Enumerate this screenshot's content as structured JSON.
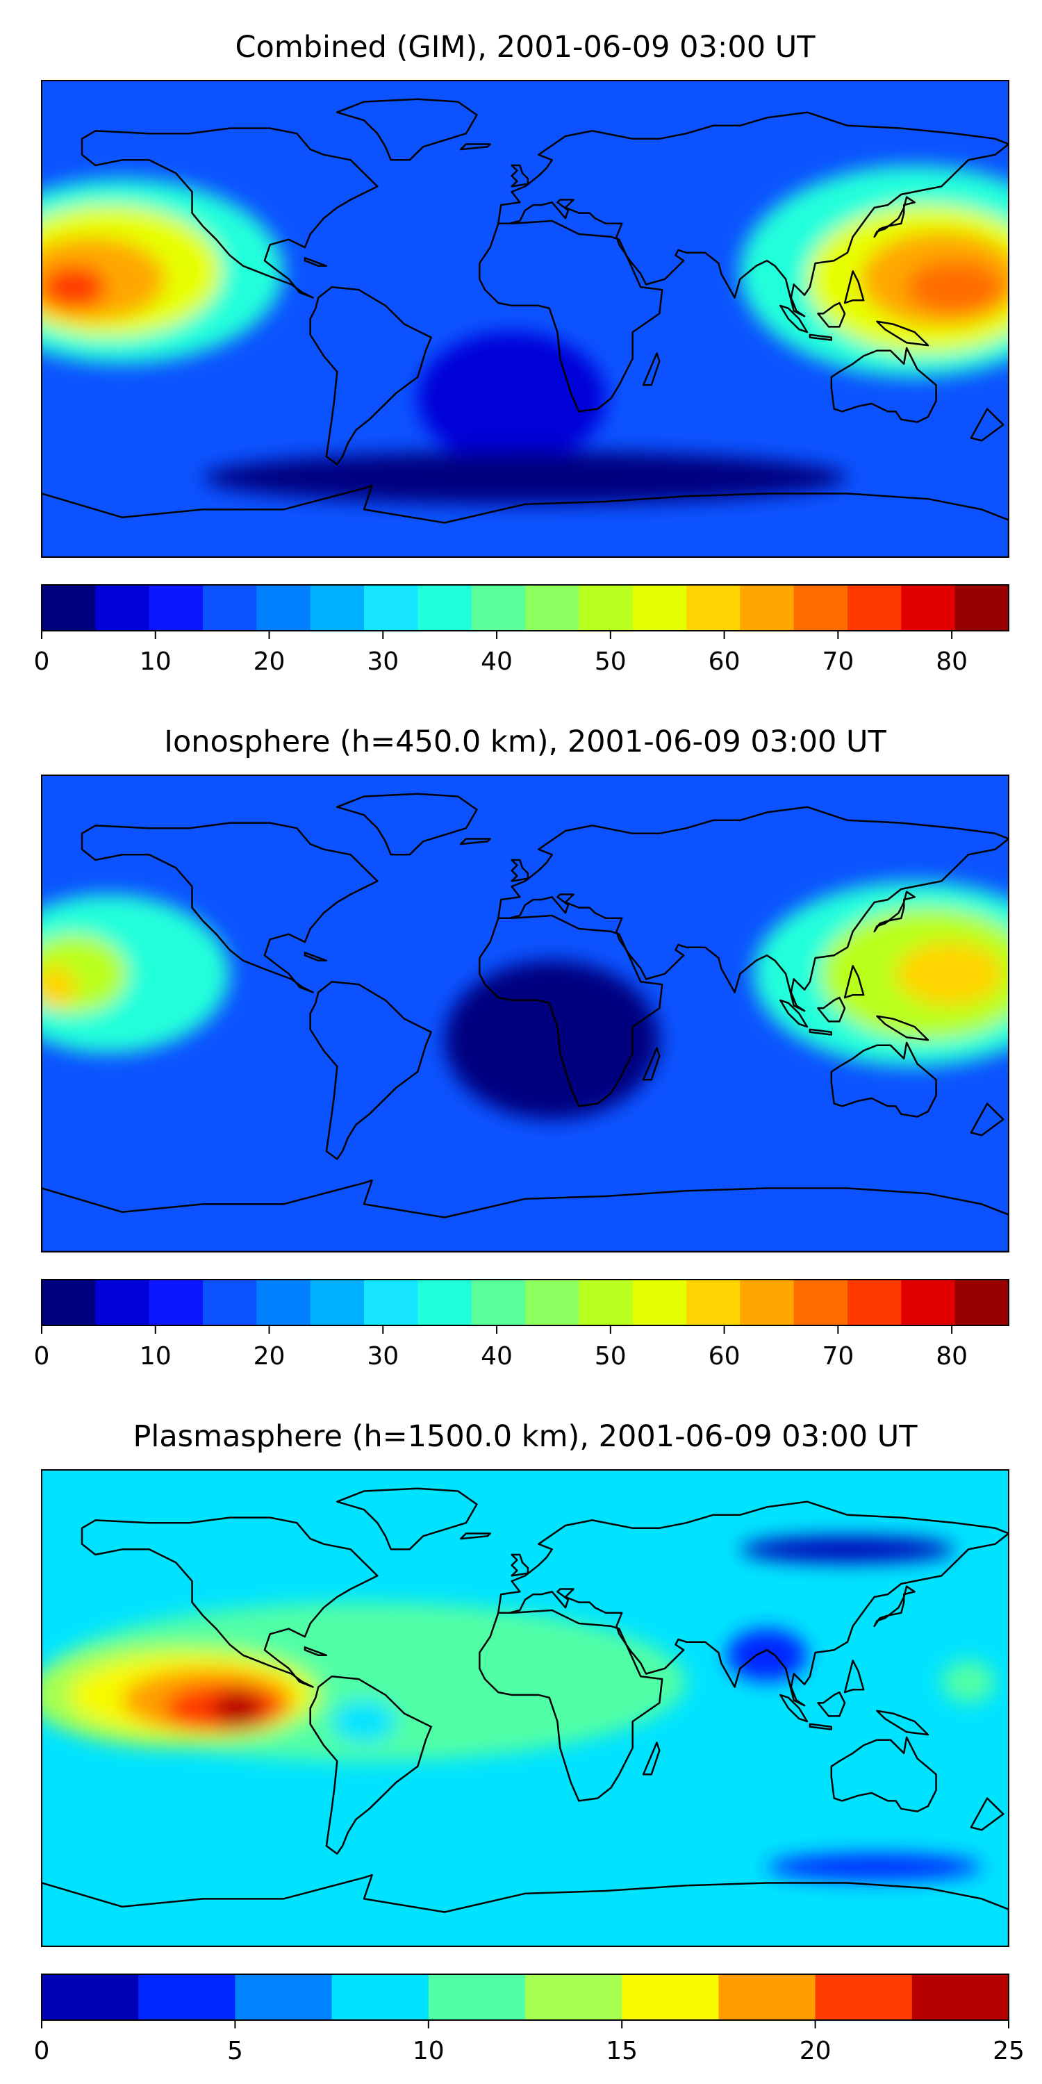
{
  "panels": [
    {
      "title": "Combined (GIM), 2001-06-09 03:00 UT",
      "colorbar": {
        "ticks": [
          "0",
          "10",
          "20",
          "30",
          "40",
          "50",
          "60",
          "70",
          "80"
        ],
        "min": 0,
        "max": 85,
        "step": 5,
        "colors": [
          "#00007f",
          "#0000d8",
          "#0d17ff",
          "#0c53ff",
          "#0080ff",
          "#00b0ff",
          "#16e5ff",
          "#20ffdb",
          "#5aff9c",
          "#8dff5e",
          "#b9ff1f",
          "#e6ff00",
          "#ffd400",
          "#ffa700",
          "#ff6d00",
          "#ff3a00",
          "#e00000",
          "#990000"
        ]
      },
      "features": [
        {
          "value": 38,
          "lon": -150,
          "lat": 18,
          "rx": 60,
          "ry": 35
        },
        {
          "value": 55,
          "lon": -155,
          "lat": 18,
          "rx": 42,
          "ry": 25
        },
        {
          "value": 68,
          "lon": -162,
          "lat": 15,
          "rx": 28,
          "ry": 16
        },
        {
          "value": 78,
          "lon": -168,
          "lat": 12,
          "rx": 12,
          "ry": 8
        },
        {
          "value": 38,
          "lon": 145,
          "lat": 18,
          "rx": 65,
          "ry": 40
        },
        {
          "value": 55,
          "lon": 150,
          "lat": 15,
          "rx": 45,
          "ry": 28
        },
        {
          "value": 68,
          "lon": 155,
          "lat": 15,
          "rx": 30,
          "ry": 18
        },
        {
          "value": 73,
          "lon": 160,
          "lat": 12,
          "rx": 18,
          "ry": 10
        },
        {
          "value": 8,
          "lon": -5,
          "lat": -30,
          "rx": 35,
          "ry": 25
        },
        {
          "value": 3,
          "lon": 0,
          "lat": -60,
          "rx": 120,
          "ry": 10
        }
      ]
    },
    {
      "title": "Ionosphere  (h=450.0 km), 2001-06-09 03:00 UT",
      "colorbar": {
        "ticks": [
          "0",
          "10",
          "20",
          "30",
          "40",
          "50",
          "60",
          "70",
          "80"
        ],
        "min": 0,
        "max": 85,
        "step": 5,
        "colors": [
          "#00007f",
          "#0000d8",
          "#0d17ff",
          "#0c53ff",
          "#0080ff",
          "#00b0ff",
          "#16e5ff",
          "#20ffdb",
          "#5aff9c",
          "#8dff5e",
          "#b9ff1f",
          "#e6ff00",
          "#ffd400",
          "#ffa700",
          "#ff6d00",
          "#ff3a00",
          "#e00000",
          "#990000"
        ]
      },
      "features": [
        {
          "value": 35,
          "lon": -155,
          "lat": 15,
          "rx": 45,
          "ry": 30
        },
        {
          "value": 50,
          "lon": -168,
          "lat": 15,
          "rx": 20,
          "ry": 15
        },
        {
          "value": 60,
          "lon": -175,
          "lat": 10,
          "rx": 8,
          "ry": 8
        },
        {
          "value": 35,
          "lon": 145,
          "lat": 15,
          "rx": 60,
          "ry": 35
        },
        {
          "value": 50,
          "lon": 150,
          "lat": 15,
          "rx": 40,
          "ry": 25
        },
        {
          "value": 60,
          "lon": 158,
          "lat": 15,
          "rx": 20,
          "ry": 12
        },
        {
          "value": 4,
          "lon": 10,
          "lat": -10,
          "rx": 40,
          "ry": 30
        }
      ]
    },
    {
      "title": "Plasmasphere (h=1500.0 km), 2001-06-09 03:00 UT",
      "colorbar": {
        "ticks": [
          "0",
          "5",
          "10",
          "15",
          "20",
          "25"
        ],
        "min": 0,
        "max": 25,
        "step": 2.5,
        "colors": [
          "#0000b7",
          "#0026ff",
          "#0083ff",
          "#00e3ff",
          "#51ffa6",
          "#a5ff51",
          "#f7fa00",
          "#ff9d00",
          "#ff3b00",
          "#b70000"
        ]
      },
      "features": [
        {
          "value": 11,
          "lon": -60,
          "lat": 10,
          "rx": 120,
          "ry": 30
        },
        {
          "value": 14,
          "lon": -130,
          "lat": 5,
          "rx": 55,
          "ry": 20
        },
        {
          "value": 16,
          "lon": -125,
          "lat": 5,
          "rx": 45,
          "ry": 15
        },
        {
          "value": 19,
          "lon": -118,
          "lat": 3,
          "rx": 32,
          "ry": 12
        },
        {
          "value": 21,
          "lon": -112,
          "lat": 0,
          "rx": 22,
          "ry": 9
        },
        {
          "value": 23.5,
          "lon": -107,
          "lat": 0,
          "rx": 9,
          "ry": 7
        },
        {
          "value": 8,
          "lon": -60,
          "lat": -5,
          "rx": 12,
          "ry": 8
        },
        {
          "value": 4,
          "lon": 90,
          "lat": 20,
          "rx": 15,
          "ry": 10
        },
        {
          "value": 11,
          "lon": 165,
          "lat": 10,
          "rx": 10,
          "ry": 8
        },
        {
          "value": 2,
          "lon": 120,
          "lat": 60,
          "rx": 40,
          "ry": 5
        },
        {
          "value": 4,
          "lon": 130,
          "lat": -60,
          "rx": 40,
          "ry": 5
        }
      ]
    }
  ],
  "colors": {
    "coast": "#000000",
    "frame": "#000000"
  }
}
